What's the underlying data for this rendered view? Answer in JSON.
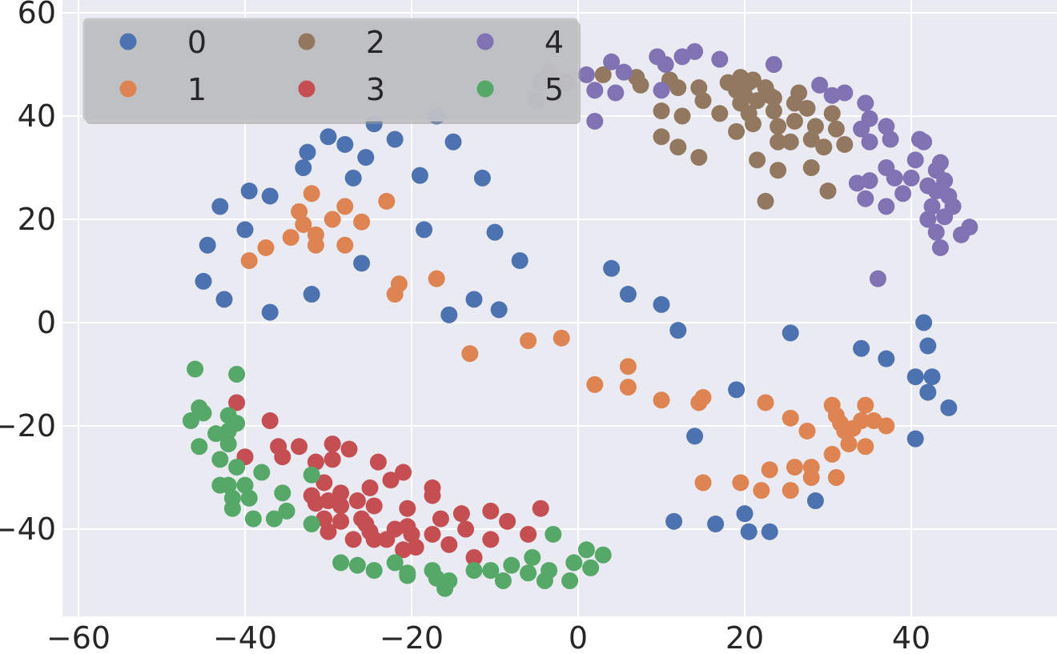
{
  "chart_data": {
    "type": "scatter",
    "title": "",
    "xlabel": "",
    "ylabel": "",
    "xlim": [
      -61,
      58
    ],
    "ylim": [
      -57,
      61
    ],
    "xticks": [
      -60,
      -40,
      -20,
      0,
      20,
      40
    ],
    "yticks": [
      -40,
      -20,
      0,
      20,
      40,
      60
    ],
    "xtick_labels": [
      "−60",
      "−40",
      "−20",
      "0",
      "20",
      "40"
    ],
    "ytick_labels": [
      "−40",
      "−20",
      "0",
      "20",
      "40",
      "60"
    ],
    "grid": true,
    "background": "#eaeaf2",
    "legend": {
      "placement": "top-left",
      "columns": 3,
      "frame_color": "#bfc0c4"
    },
    "series": [
      {
        "name": "0",
        "color": "#4c72b0",
        "points": [
          [
            -33,
            30
          ],
          [
            -32.5,
            33
          ],
          [
            -30,
            36
          ],
          [
            -28,
            34.5
          ],
          [
            -27,
            28
          ],
          [
            -25.5,
            32
          ],
          [
            -24.5,
            38.5
          ],
          [
            -22,
            35.5
          ],
          [
            -19,
            28.5
          ],
          [
            -17,
            40
          ],
          [
            -15,
            35
          ],
          [
            -11.5,
            28
          ],
          [
            -10,
            17.5
          ],
          [
            -7,
            12
          ],
          [
            -18.5,
            18
          ],
          [
            -43,
            22.5
          ],
          [
            -39.5,
            25.5
          ],
          [
            -37,
            24.5
          ],
          [
            -40,
            18
          ],
          [
            -44.5,
            15
          ],
          [
            -45,
            8
          ],
          [
            -42.5,
            4.5
          ],
          [
            -37,
            2
          ],
          [
            -32,
            5.5
          ],
          [
            -26,
            11.5
          ],
          [
            -12.5,
            4.5
          ],
          [
            -15.5,
            1.5
          ],
          [
            -9.5,
            2.5
          ],
          [
            4,
            10.5
          ],
          [
            6,
            5.5
          ],
          [
            10,
            3.5
          ],
          [
            12,
            -1.5
          ],
          [
            19,
            -13
          ],
          [
            14,
            -22
          ],
          [
            11.5,
            -38.5
          ],
          [
            16.5,
            -39
          ],
          [
            20,
            -37
          ],
          [
            20.5,
            -40.5
          ],
          [
            23,
            -40.5
          ],
          [
            28.5,
            -34.5
          ],
          [
            25.5,
            -2
          ],
          [
            34,
            -5
          ],
          [
            37,
            -7
          ],
          [
            41.5,
            0
          ],
          [
            42,
            -4.5
          ],
          [
            40.5,
            -10.5
          ],
          [
            42.5,
            -10.5
          ],
          [
            42,
            -13.5
          ],
          [
            44.5,
            -16.5
          ],
          [
            40.5,
            -22.5
          ]
        ]
      },
      {
        "name": "1",
        "color": "#dd8452",
        "points": [
          [
            -32,
            25
          ],
          [
            -33.5,
            21.5
          ],
          [
            -33,
            19
          ],
          [
            -34.5,
            16.5
          ],
          [
            -31.5,
            17
          ],
          [
            -31.5,
            15
          ],
          [
            -29.5,
            20
          ],
          [
            -28,
            22.5
          ],
          [
            -28,
            15
          ],
          [
            -26,
            19.5
          ],
          [
            -23,
            23.5
          ],
          [
            -37.5,
            14.5
          ],
          [
            -39.5,
            12
          ],
          [
            -22,
            5.5
          ],
          [
            -21.5,
            7.5
          ],
          [
            -17,
            8.5
          ],
          [
            -13,
            -6
          ],
          [
            -6,
            -3.5
          ],
          [
            -2,
            -3
          ],
          [
            2,
            -12
          ],
          [
            6,
            -8.5
          ],
          [
            6,
            -12.5
          ],
          [
            10,
            -15
          ],
          [
            14.5,
            -15.5
          ],
          [
            15,
            -14.5
          ],
          [
            22.5,
            -15.5
          ],
          [
            25.5,
            -18.5
          ],
          [
            27.5,
            -21
          ],
          [
            15,
            -31
          ],
          [
            19.5,
            -31
          ],
          [
            22,
            -32.5
          ],
          [
            23,
            -28.5
          ],
          [
            25.5,
            -32.5
          ],
          [
            26,
            -28
          ],
          [
            28,
            -28
          ],
          [
            28,
            -30
          ],
          [
            30.5,
            -16
          ],
          [
            31,
            -18
          ],
          [
            31.5,
            -19.5
          ],
          [
            32,
            -21
          ],
          [
            32.5,
            -23.5
          ],
          [
            33,
            -20.5
          ],
          [
            34,
            -19
          ],
          [
            34.5,
            -16
          ],
          [
            35.5,
            -19
          ],
          [
            37,
            -20
          ],
          [
            34.5,
            -24
          ],
          [
            30.5,
            -25.5
          ],
          [
            31,
            -30
          ]
        ]
      },
      {
        "name": "2",
        "color": "#937860",
        "points": [
          [
            -3.5,
            48.5
          ],
          [
            -1.5,
            46.5
          ],
          [
            3,
            48
          ],
          [
            7,
            47.5
          ],
          [
            7.5,
            46
          ],
          [
            11,
            47
          ],
          [
            12,
            45.5
          ],
          [
            10,
            41
          ],
          [
            12.5,
            40
          ],
          [
            14.5,
            45.5
          ],
          [
            15,
            43
          ],
          [
            17,
            40.5
          ],
          [
            18,
            46.5
          ],
          [
            19,
            45
          ],
          [
            19.5,
            47.5
          ],
          [
            20,
            44
          ],
          [
            20.5,
            46.5
          ],
          [
            21,
            47
          ],
          [
            19.5,
            42.5
          ],
          [
            20.5,
            40.5
          ],
          [
            21,
            38.5
          ],
          [
            19,
            37
          ],
          [
            21.5,
            43
          ],
          [
            22.5,
            45.5
          ],
          [
            23,
            44
          ],
          [
            23.5,
            41
          ],
          [
            23.5,
            43.5
          ],
          [
            24,
            38
          ],
          [
            24,
            35
          ],
          [
            26,
            42.5
          ],
          [
            26.5,
            44.5
          ],
          [
            26,
            39
          ],
          [
            25.5,
            35
          ],
          [
            27.5,
            41.5
          ],
          [
            28,
            35.5
          ],
          [
            28.5,
            38
          ],
          [
            29.5,
            34
          ],
          [
            30.5,
            40.5
          ],
          [
            31,
            37.5
          ],
          [
            32,
            34.5
          ],
          [
            30,
            25.5
          ],
          [
            28,
            30
          ],
          [
            24,
            29.5
          ],
          [
            21.5,
            31.5
          ],
          [
            22.5,
            23.5
          ],
          [
            14.5,
            32
          ],
          [
            12,
            34
          ],
          [
            10,
            36
          ]
        ]
      },
      {
        "name": "3",
        "color": "#c44e52",
        "points": [
          [
            -41,
            -15.5
          ],
          [
            -37,
            -19
          ],
          [
            -40,
            -26
          ],
          [
            -36,
            -24
          ],
          [
            -35.5,
            -26
          ],
          [
            -33.5,
            -24
          ],
          [
            -31.5,
            -27
          ],
          [
            -29.5,
            -23.5
          ],
          [
            -29.5,
            -26.5
          ],
          [
            -27.5,
            -24.5
          ],
          [
            -24,
            -27
          ],
          [
            -21,
            -29
          ],
          [
            -22.5,
            -30.5
          ],
          [
            -25,
            -32
          ],
          [
            -17.5,
            -32
          ],
          [
            -17.5,
            -33.5
          ],
          [
            -30.5,
            -31
          ],
          [
            -32,
            -33.5
          ],
          [
            -31.5,
            -35
          ],
          [
            -30,
            -34.5
          ],
          [
            -28.5,
            -33
          ],
          [
            -28.5,
            -35.5
          ],
          [
            -26.5,
            -34.5
          ],
          [
            -24.5,
            -35.5
          ],
          [
            -30.5,
            -38
          ],
          [
            -28.5,
            -38.5
          ],
          [
            -26,
            -38
          ],
          [
            -25.5,
            -39
          ],
          [
            -25,
            -40.5
          ],
          [
            -22,
            -40
          ],
          [
            -20.5,
            -36
          ],
          [
            -20.5,
            -39.5
          ],
          [
            -20,
            -41
          ],
          [
            -19.5,
            -43.5
          ],
          [
            -21,
            -44
          ],
          [
            -17.5,
            -41
          ],
          [
            -16.5,
            -38
          ],
          [
            -15.5,
            -43
          ],
          [
            -14,
            -37
          ],
          [
            -13.5,
            -40
          ],
          [
            -10.5,
            -36.5
          ],
          [
            -10.5,
            -42
          ],
          [
            -8.5,
            -38.5
          ],
          [
            -6,
            -41
          ],
          [
            -4.5,
            -36
          ],
          [
            -12.5,
            -45.5
          ],
          [
            -30,
            -40.5
          ],
          [
            -27,
            -42
          ],
          [
            -24.5,
            -42
          ],
          [
            -23,
            -42
          ]
        ]
      },
      {
        "name": "4",
        "color": "#8172b3",
        "points": [
          [
            -5,
            43
          ],
          [
            -4.5,
            46.5
          ],
          [
            1,
            48
          ],
          [
            2,
            45
          ],
          [
            2,
            39
          ],
          [
            4,
            50.5
          ],
          [
            4.5,
            44.5
          ],
          [
            5.5,
            48.5
          ],
          [
            9.5,
            51.5
          ],
          [
            10,
            45
          ],
          [
            10.5,
            50
          ],
          [
            12.5,
            51.5
          ],
          [
            14,
            52.5
          ],
          [
            17,
            51
          ],
          [
            23.5,
            50
          ],
          [
            29,
            46
          ],
          [
            30.5,
            44
          ],
          [
            32,
            44.5
          ],
          [
            34.5,
            42.5
          ],
          [
            34,
            37.5
          ],
          [
            35,
            39.5
          ],
          [
            35,
            35
          ],
          [
            37,
            38
          ],
          [
            37.5,
            35.5
          ],
          [
            38,
            28
          ],
          [
            37,
            30
          ],
          [
            39,
            25
          ],
          [
            40,
            28
          ],
          [
            40.5,
            31.5
          ],
          [
            41,
            35.5
          ],
          [
            41.5,
            35
          ],
          [
            42,
            26.5
          ],
          [
            42.5,
            22.5
          ],
          [
            43,
            29.5
          ],
          [
            43,
            25.5
          ],
          [
            43.5,
            31
          ],
          [
            44,
            27.5
          ],
          [
            44.5,
            24.5
          ],
          [
            45,
            22.5
          ],
          [
            44,
            20.5
          ],
          [
            42,
            20
          ],
          [
            43,
            17.5
          ],
          [
            43.5,
            14.5
          ],
          [
            46,
            17
          ],
          [
            47,
            18.5
          ],
          [
            33.5,
            27
          ],
          [
            34.5,
            24
          ],
          [
            35,
            27.5
          ],
          [
            37,
            22.5
          ],
          [
            36,
            8.5
          ]
        ]
      },
      {
        "name": "5",
        "color": "#55a868",
        "points": [
          [
            -46,
            -9
          ],
          [
            -46.5,
            -19
          ],
          [
            -45.5,
            -16.5
          ],
          [
            -45,
            -17.5
          ],
          [
            -45.5,
            -24
          ],
          [
            -43.5,
            -21.5
          ],
          [
            -42,
            -18
          ],
          [
            -42,
            -21
          ],
          [
            -41,
            -10
          ],
          [
            -41,
            -19.5
          ],
          [
            -42,
            -23.5
          ],
          [
            -43,
            -26.5
          ],
          [
            -43,
            -31.5
          ],
          [
            -42,
            -31.5
          ],
          [
            -41,
            -28
          ],
          [
            -40,
            -31.5
          ],
          [
            -41.5,
            -34
          ],
          [
            -41.5,
            -36
          ],
          [
            -39.5,
            -34
          ],
          [
            -39,
            -38
          ],
          [
            -38,
            -29
          ],
          [
            -35.5,
            -33
          ],
          [
            -35,
            -36.5
          ],
          [
            -36.5,
            -38
          ],
          [
            -32,
            -29.5
          ],
          [
            -32,
            -39
          ],
          [
            -28.5,
            -46.5
          ],
          [
            -26.5,
            -47
          ],
          [
            -24.5,
            -48
          ],
          [
            -22,
            -46.5
          ],
          [
            -20.5,
            -49
          ],
          [
            -20.5,
            -48.5
          ],
          [
            -17.5,
            -48
          ],
          [
            -17,
            -49.5
          ],
          [
            -16,
            -51.5
          ],
          [
            -15.5,
            -50
          ],
          [
            -12.5,
            -48
          ],
          [
            -10.5,
            -48
          ],
          [
            -9,
            -50
          ],
          [
            -8,
            -47
          ],
          [
            -6,
            -48.5
          ],
          [
            -5.5,
            -45.5
          ],
          [
            -4,
            -50
          ],
          [
            -3.5,
            -48
          ],
          [
            -3,
            -41
          ],
          [
            -1,
            -50
          ],
          [
            -0.5,
            -46.5
          ],
          [
            1,
            -44
          ],
          [
            1.5,
            -47.5
          ],
          [
            3,
            -45
          ]
        ]
      }
    ]
  }
}
